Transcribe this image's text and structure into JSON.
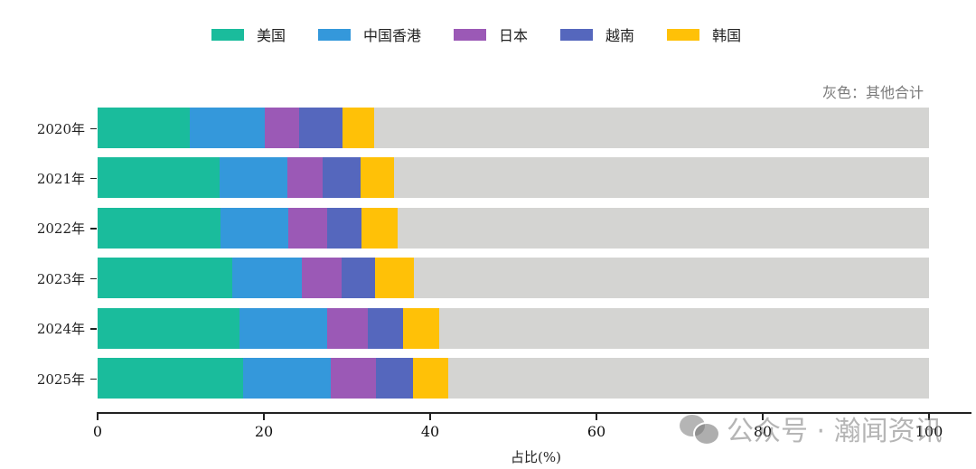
{
  "legend": [
    {
      "label": "美国",
      "color": "#1abc9c"
    },
    {
      "label": "中国香港",
      "color": "#3498db"
    },
    {
      "label": "日本",
      "color": "#9b59b6"
    },
    {
      "label": "越南",
      "color": "#5567bd"
    },
    {
      "label": "韩国",
      "color": "#ffc107"
    }
  ],
  "note": "灰色：其他合计",
  "other_color": "#d4d4d2",
  "xaxis": {
    "label": "占比(%)",
    "ticks": [
      "0",
      "20",
      "40",
      "60",
      "80",
      "100"
    ]
  },
  "watermark": "公众号 · 瀚闻资讯",
  "chart_data": {
    "type": "bar",
    "orientation": "horizontal",
    "stacked": true,
    "title": "",
    "xlabel": "占比(%)",
    "ylabel": "",
    "xlim": [
      0,
      100
    ],
    "grid": false,
    "legend_position": "top",
    "annotation": "灰色：其他合计",
    "categories": [
      "2020年",
      "2021年",
      "2022年",
      "2023年",
      "2024年",
      "2025年"
    ],
    "series": [
      {
        "name": "美国",
        "color": "#1abc9c",
        "values": [
          11.1,
          14.7,
          14.8,
          16.2,
          17.1,
          17.5
        ]
      },
      {
        "name": "中国香港",
        "color": "#3498db",
        "values": [
          9.0,
          8.1,
          8.1,
          8.4,
          10.5,
          10.5
        ]
      },
      {
        "name": "日本",
        "color": "#9b59b6",
        "values": [
          4.1,
          4.3,
          4.7,
          4.8,
          4.9,
          5.5
        ]
      },
      {
        "name": "越南",
        "color": "#5567bd",
        "values": [
          5.3,
          4.5,
          4.1,
          4.0,
          4.2,
          4.4
        ]
      },
      {
        "name": "韩国",
        "color": "#ffc107",
        "values": [
          3.8,
          4.1,
          4.4,
          4.6,
          4.4,
          4.3
        ]
      },
      {
        "name": "其他合计",
        "color": "#d4d4d2",
        "values": [
          66.7,
          64.3,
          63.9,
          62.0,
          58.9,
          57.8
        ]
      }
    ]
  }
}
